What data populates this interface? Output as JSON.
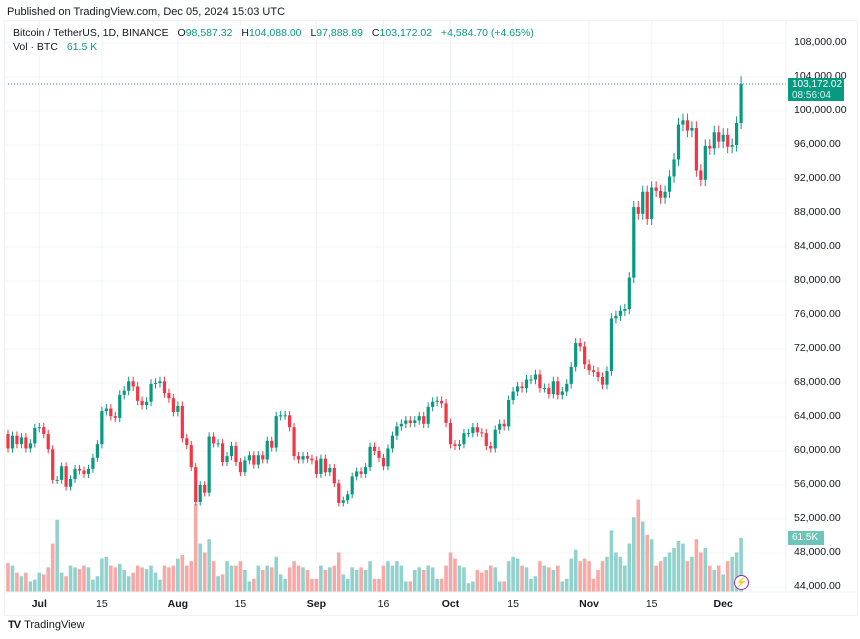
{
  "published": "Published on TradingView.com, Dec 05, 2024 15:03 UTC",
  "legend": {
    "symbol": "Bitcoin / TetherUS, 1D, BINANCE",
    "o_label": "O",
    "o": "98,587.32",
    "h_label": "H",
    "h": "104,088.00",
    "l_label": "L",
    "l": "97,888.89",
    "c_label": "C",
    "c": "103,172.02",
    "change": "+4,584.70 (+4.65%)",
    "vol_label": "Vol · BTC",
    "vol": "61.5 K"
  },
  "last_price_tag": {
    "price": "103,172.02",
    "countdown": "08:56:04"
  },
  "volume_tag": "61.5K",
  "footer": {
    "logo": "TV",
    "brand": "TradingView"
  },
  "colors": {
    "up": "#089981",
    "down": "#F23645",
    "vol_up": "#92D2CC",
    "vol_down": "#F7A9A7"
  },
  "icons": {
    "alert": "lightning-bolt-icon"
  },
  "chart_data": {
    "type": "candlestick",
    "title": "Bitcoin / TetherUS, 1D, BINANCE",
    "start_date": "2024-06-24",
    "end_date": "2024-12-05",
    "ylim": [
      42000,
      110000
    ],
    "y_ticks": [
      "108,000.00",
      "104,000.00",
      "100,000.00",
      "96,000.00",
      "92,000.00",
      "88,000.00",
      "84,000.00",
      "80,000.00",
      "76,000.00",
      "72,000.00",
      "68,000.00",
      "64,000.00",
      "60,000.00",
      "56,000.00",
      "52,000.00",
      "48,000.00",
      "44,000.00"
    ],
    "x_ticks": [
      {
        "label": "Jul",
        "date": "2024-07-01",
        "bold": true
      },
      {
        "label": "15",
        "date": "2024-07-15"
      },
      {
        "label": "Aug",
        "date": "2024-08-01",
        "bold": true
      },
      {
        "label": "15",
        "date": "2024-08-15"
      },
      {
        "label": "Sep",
        "date": "2024-09-01",
        "bold": true
      },
      {
        "label": "16",
        "date": "2024-09-16"
      },
      {
        "label": "Oct",
        "date": "2024-10-01",
        "bold": true
      },
      {
        "label": "15",
        "date": "2024-10-15"
      },
      {
        "label": "Nov",
        "date": "2024-11-01",
        "bold": true
      },
      {
        "label": "15",
        "date": "2024-11-15"
      },
      {
        "label": "Dec",
        "date": "2024-12-01",
        "bold": true
      }
    ],
    "grid": true,
    "last_candle": {
      "open": 98587.32,
      "high": 104088.0,
      "low": 97888.89,
      "close": 103172.02
    },
    "first_open": 62000,
    "closes": [
      60300,
      61800,
      60800,
      61600,
      60300,
      60900,
      62700,
      62800,
      62000,
      60200,
      56600,
      56600,
      58200,
      55800,
      56700,
      57900,
      57700,
      57300,
      57900,
      59200,
      60800,
      64700,
      65000,
      64100,
      63900,
      66600,
      67100,
      68200,
      67600,
      65900,
      65400,
      65800,
      67900,
      68000,
      68200,
      66800,
      66200,
      64600,
      65300,
      61500,
      60700,
      58100,
      54000,
      56000,
      55100,
      61700,
      60900,
      60900,
      58700,
      59400,
      60600,
      58700,
      57500,
      58900,
      59500,
      58400,
      59500,
      59000,
      61200,
      60400,
      64100,
      64200,
      64200,
      62800,
      59400,
      59000,
      59400,
      59100,
      58900,
      57300,
      59100,
      57500,
      58000,
      56200,
      53900,
      54200,
      54900,
      57000,
      57600,
      57300,
      58100,
      60500,
      60000,
      59200,
      58200,
      60300,
      61800,
      62900,
      63200,
      63600,
      63300,
      63600,
      64100,
      63200,
      65200,
      65800,
      65900,
      65600,
      63300,
      60800,
      60600,
      60800,
      62100,
      62100,
      62800,
      62200,
      62100,
      60600,
      60300,
      62500,
      63200,
      62900,
      66000,
      67000,
      67600,
      67400,
      68400,
      68400,
      69000,
      67400,
      67400,
      66700,
      68200,
      66600,
      67000,
      67900,
      69900,
      72700,
      72300,
      70200,
      69500,
      69300,
      68700,
      67800,
      69400,
      75600,
      75900,
      76500,
      76700,
      80400,
      88700,
      87900,
      90500,
      87300,
      91000,
      90600,
      89800,
      90500,
      92300,
      94300,
      98400,
      98900,
      97700,
      98000,
      93000,
      91900,
      95900,
      95600,
      97500,
      96400,
      97200,
      95800,
      96000,
      98587.32,
      103172.02
    ],
    "volumes_k": [
      33,
      30,
      22,
      18,
      22,
      12,
      14,
      22,
      20,
      28,
      55,
      82,
      22,
      18,
      30,
      28,
      26,
      30,
      28,
      14,
      18,
      38,
      40,
      30,
      28,
      32,
      25,
      18,
      22,
      30,
      28,
      26,
      30,
      22,
      14,
      30,
      28,
      30,
      38,
      42,
      30,
      35,
      100,
      55,
      45,
      60,
      35,
      18,
      20,
      35,
      30,
      30,
      35,
      25,
      12,
      15,
      30,
      25,
      30,
      28,
      40,
      20,
      15,
      28,
      35,
      30,
      28,
      25,
      15,
      15,
      30,
      25,
      28,
      30,
      45,
      20,
      15,
      28,
      25,
      28,
      25,
      35,
      15,
      15,
      30,
      35,
      30,
      35,
      30,
      12,
      12,
      25,
      28,
      25,
      30,
      28,
      15,
      15,
      30,
      45,
      38,
      30,
      28,
      10,
      12,
      25,
      22,
      25,
      30,
      28,
      12,
      12,
      35,
      40,
      38,
      30,
      28,
      15,
      18,
      35,
      30,
      28,
      25,
      30,
      12,
      15,
      38,
      48,
      35,
      38,
      35,
      15,
      25,
      35,
      40,
      70,
      45,
      40,
      30,
      55,
      85,
      105,
      80,
      65,
      60,
      30,
      35,
      40,
      45,
      50,
      58,
      55,
      35,
      40,
      60,
      45,
      50,
      30,
      25,
      30,
      20,
      35,
      40,
      45,
      61.5
    ]
  }
}
